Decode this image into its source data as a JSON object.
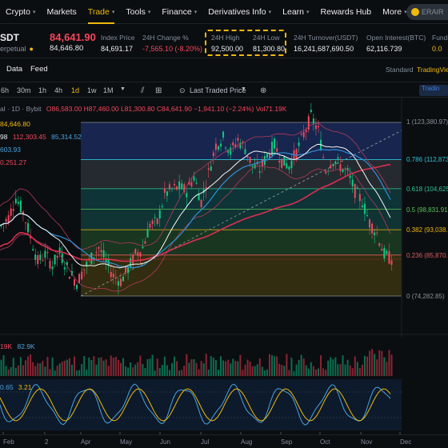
{
  "nav": {
    "items": [
      {
        "label": "Crypto",
        "caret": true
      },
      {
        "label": "Markets",
        "caret": false
      },
      {
        "label": "Trade",
        "caret": true,
        "active": true
      },
      {
        "label": "Tools",
        "caret": true
      },
      {
        "label": "Finance",
        "caret": true
      },
      {
        "label": "Derivatives Info",
        "caret": true
      },
      {
        "label": "Learn",
        "caret": true
      },
      {
        "label": "Rewards Hub",
        "caret": false
      },
      {
        "label": "More",
        "caret": true
      }
    ],
    "search_text": "ERAIR"
  },
  "ticker": {
    "symbol": "SDT",
    "contract": "erpetual",
    "last_price": "84,641.90",
    "mark_price": "84,646.80",
    "stats": [
      {
        "label": "Index Price",
        "value": "84,691.17",
        "tone": "normal"
      },
      {
        "label": "24H Change %",
        "value": "-7,565.10 (-8.20%)",
        "tone": "red"
      },
      {
        "label": "24H High",
        "value": "92,500.00",
        "tone": "normal"
      },
      {
        "label": "24H Low",
        "value": "81,300.80",
        "tone": "normal"
      },
      {
        "label": "24H Turnover(USDT)",
        "value": "16,241,687,690.50",
        "tone": "normal"
      },
      {
        "label": "Open Interest(BTC)",
        "value": "62,116.739",
        "tone": "normal"
      },
      {
        "label": "Fundin",
        "value": "0.0",
        "tone": "yellow"
      }
    ]
  },
  "tabs": {
    "left": [
      "Data",
      "Feed"
    ],
    "right": [
      "Standard",
      "TradingVie"
    ],
    "active_right": "TradingVie"
  },
  "toolbar": {
    "intervals": [
      "6h",
      "30m",
      "1h",
      "4h",
      "1d",
      "1w",
      "1M"
    ],
    "active_interval": "1d",
    "price_mode": "Last Traded Price",
    "tv_label": "Tradin"
  },
  "chart_data": {
    "type": "candlestick",
    "legend": {
      "ohlc": "al · 1D · Bybit",
      "ohlc_values": "O86,583.00 H87,460.00 L81,300.80 C84,641.90 −1,941.10 (−2.24%) Vol71.19K",
      "ma_line1": "84,646.80",
      "ma_line2_a": "98",
      "ma_line2_b": "112,303.45",
      "ma_line2_c": "85,314.52",
      "ma_line3": "603.93",
      "ma_line4": "0,251.27",
      "volume": "19K",
      "volume_ma": "82.9K",
      "osc_a": "0.65",
      "osc_b": "3.21"
    },
    "fib_levels": [
      {
        "ratio": "1",
        "price": "(123,380.97)",
        "color": "#8a8f98"
      },
      {
        "ratio": "0.786",
        "price": "(112,873",
        "color": "#2ec4d6"
      },
      {
        "ratio": "0.618",
        "price": "(104,625",
        "color": "#31c48d"
      },
      {
        "ratio": "0.5",
        "price": "(98,831.91",
        "color": "#5bc35b"
      },
      {
        "ratio": "0.382",
        "price": "(93,038.3",
        "color": "#f0b90b"
      },
      {
        "ratio": "0.236",
        "price": "(85,870.0",
        "color": "#e05a5a"
      },
      {
        "ratio": "0",
        "price": "(74,282.85)",
        "color": "#8a8f98"
      }
    ],
    "x_ticks": [
      "Feb",
      "2",
      "Apr",
      "May",
      "Jun",
      "Jul",
      "Aug",
      "Sep",
      "Oct",
      "Nov",
      "Dec"
    ],
    "colors": {
      "up": "#0ecb81",
      "down": "#f6465d",
      "ma_long": "#d9304f",
      "ma_mid": "#2f8fd8",
      "ma_short": "#f5f5f5",
      "bb": "#b33a5a"
    },
    "price_path": [
      [
        0,
        94000
      ],
      [
        3,
        96500
      ],
      [
        6,
        102000
      ],
      [
        9,
        98000
      ],
      [
        12,
        91000
      ],
      [
        15,
        84000
      ],
      [
        18,
        86000
      ],
      [
        21,
        83000
      ],
      [
        24,
        86500
      ],
      [
        28,
        81000
      ],
      [
        31,
        78000
      ],
      [
        34,
        82000
      ],
      [
        37,
        85000
      ],
      [
        40,
        88000
      ],
      [
        43,
        84000
      ],
      [
        46,
        80000
      ],
      [
        49,
        78500
      ],
      [
        52,
        82000
      ],
      [
        55,
        86000
      ],
      [
        58,
        88000
      ],
      [
        61,
        94500
      ],
      [
        64,
        95000
      ],
      [
        67,
        103000
      ],
      [
        70,
        104500
      ],
      [
        73,
        105000
      ],
      [
        76,
        104000
      ],
      [
        79,
        108000
      ],
      [
        82,
        101000
      ],
      [
        85,
        109000
      ],
      [
        88,
        117000
      ],
      [
        91,
        119000
      ],
      [
        94,
        115000
      ],
      [
        97,
        118500
      ],
      [
        100,
        116000
      ],
      [
        103,
        111000
      ],
      [
        106,
        110000
      ],
      [
        109,
        114000
      ],
      [
        112,
        117000
      ],
      [
        115,
        112500
      ],
      [
        118,
        111000
      ],
      [
        121,
        115000
      ],
      [
        124,
        120000
      ],
      [
        127,
        125000
      ],
      [
        130,
        121000
      ],
      [
        133,
        110000
      ],
      [
        136,
        113000
      ],
      [
        139,
        111000
      ],
      [
        142,
        109000
      ],
      [
        145,
        104000
      ],
      [
        148,
        101000
      ],
      [
        151,
        95000
      ],
      [
        154,
        92000
      ],
      [
        157,
        86000
      ],
      [
        160,
        84642
      ]
    ]
  },
  "timeline": {
    "labels": [
      "Feb",
      "2",
      "Apr",
      "May",
      "Jun",
      "Jul",
      "Aug",
      "Sep",
      "Oct",
      "Nov",
      "Dec"
    ]
  }
}
